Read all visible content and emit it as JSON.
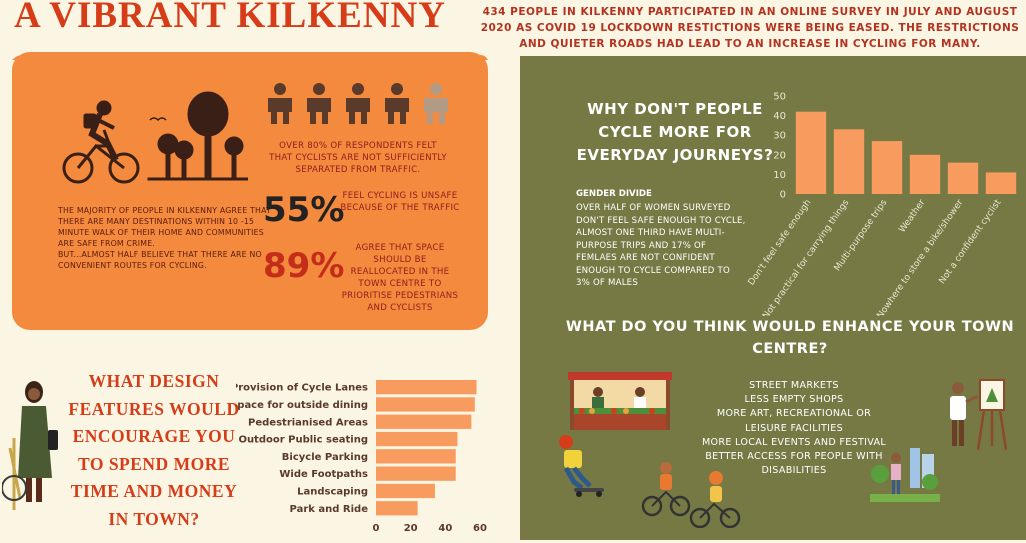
{
  "title": "A VIBRANT KILKENNY",
  "intro": "434 PEOPLE IN KILKENNY PARTICIPATED IN AN ONLINE SURVEY IN JULY AND AUGUST 2020 AS COVID 19 LOCKDOWN RESTICTIONS WERE BEING EASED. THE RESTRICTIONS AND QUIETER ROADS HAD LEAD TO AN INCREASE IN CYCLING FOR MANY.",
  "orange_panel": {
    "stat_80_text": "OVER 80% OF RESPONDENTS FELT THAT CYCLISTS ARE NOT SUFFICIENTLY SEPARATED FROM TRAFFIC.",
    "majority_text": "THE MAJORITY OF PEOPLE IN KILKENNY AGREE THAT THERE ARE MANY DESTINATIONS WITHIN 10 -15 MINUTE WALK OF THEIR HOME AND  COMMUNITIES ARE SAFE FROM CRIME.",
    "half_text": "BUT...ALMOST HALF BELIEVE THAT THERE ARE NO CONVENIENT ROUTES FOR CYCLING.",
    "stat_55": "55%",
    "stat_55_text": "FEEL CYCLING IS UNSAFE BECAUSE OF THE TRAFFIC",
    "stat_89": "89%",
    "stat_89_text": "AGREE THAT SPACE SHOULD BE REALLOCATED IN THE TOWN CENTRE TO PRIORITISE PEDESTRIANS AND CYCLISTS"
  },
  "olive_panel": {
    "why_title": "WHY DON'T PEOPLE CYCLE MORE FOR EVERYDAY JOURNEYS?",
    "gender_heading": "GENDER DIVIDE",
    "gender_body": "OVER HALF OF WOMEN SURVEYED DON'T FEEL SAFE ENOUGH TO CYCLE, ALMOST ONE THIRD HAVE MULTI-PURPOSE TRIPS AND 17% OF FEMLAES ARE NOT CONFIDENT ENOUGH TO CYCLE COMPARED TO 3% OF MALES",
    "enhance_title": "WHAT DO YOU THINK WOULD ENHANCE YOUR TOWN CENTRE?",
    "enhance_items": [
      "STREET MARKETS",
      "LESS EMPTY SHOPS",
      "MORE ART, RECREATIONAL OR",
      "LEISURE FACILITIES",
      "MORE LOCAL EVENTS AND FESTIVAL",
      "BETTER ACCESS FOR PEOPLE WITH",
      "DISABILITIES"
    ]
  },
  "design_title": "WHAT DESIGN FEATURES WOULD ENCOURAGE YOU TO SPEND MORE TIME AND MONEY IN TOWN?",
  "colors": {
    "title_red": "#d63c17",
    "orange_panel": "#f38a3d",
    "olive_panel": "#767944",
    "bar_orange": "#f89b5e",
    "background": "#fbf5e3"
  },
  "chart_data": [
    {
      "type": "bar",
      "orientation": "vertical",
      "categories": [
        "Don't feel safe enough",
        "Not practical for carrying things",
        "Multi-purpose trips",
        "Weather",
        "Nowhere to store a bike/shower",
        "Not a confident cyclist"
      ],
      "values": [
        42,
        33,
        27,
        20,
        16,
        11
      ],
      "ylim": [
        0,
        50
      ],
      "yticks": [
        0,
        10,
        20,
        30,
        40,
        50
      ],
      "grid": false
    },
    {
      "type": "bar",
      "orientation": "horizontal",
      "categories": [
        "Provision of Cycle Lanes",
        "Space for outside dining",
        "Pedestrianised Areas",
        "Outdoor Public seating",
        "Bicycle Parking",
        "Wide Footpaths",
        "Landscaping",
        "Park and Ride"
      ],
      "values": [
        58,
        57,
        55,
        47,
        46,
        46,
        34,
        24
      ],
      "xlim": [
        0,
        60
      ],
      "xticks": [
        0,
        20,
        40,
        60
      ],
      "grid": false
    }
  ]
}
